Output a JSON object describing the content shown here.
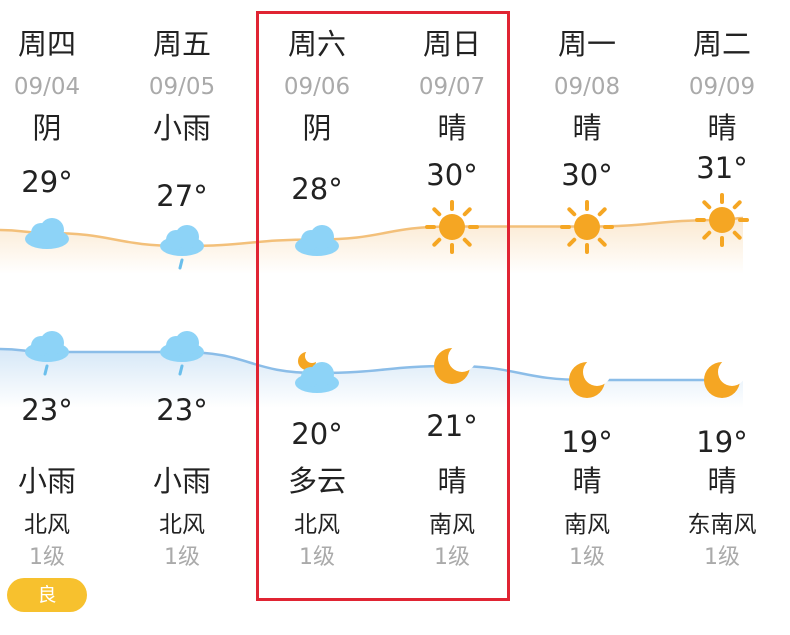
{
  "forecast": {
    "days": [
      {
        "weekday": "周四",
        "date": "09/04",
        "day_condition": "阴",
        "high": "29°",
        "day_icon": "cloud-icon",
        "night_icon": "rain-cloud-icon",
        "low": "23°",
        "night_condition": "小雨",
        "wind_direction": "北风",
        "wind_level": "1级",
        "aqi": "良"
      },
      {
        "weekday": "周五",
        "date": "09/05",
        "day_condition": "小雨",
        "high": "27°",
        "day_icon": "rain-cloud-icon",
        "night_icon": "rain-cloud-icon",
        "low": "23°",
        "night_condition": "小雨",
        "wind_direction": "北风",
        "wind_level": "1级"
      },
      {
        "weekday": "周六",
        "date": "09/06",
        "day_condition": "阴",
        "high": "28°",
        "day_icon": "cloud-icon",
        "night_icon": "moon-cloud-icon",
        "low": "20°",
        "night_condition": "多云",
        "wind_direction": "北风",
        "wind_level": "1级"
      },
      {
        "weekday": "周日",
        "date": "09/07",
        "day_condition": "晴",
        "high": "30°",
        "day_icon": "sun-icon",
        "night_icon": "moon-icon",
        "low": "21°",
        "night_condition": "晴",
        "wind_direction": "南风",
        "wind_level": "1级"
      },
      {
        "weekday": "周一",
        "date": "09/08",
        "day_condition": "晴",
        "high": "30°",
        "day_icon": "sun-icon",
        "night_icon": "moon-icon",
        "low": "19°",
        "night_condition": "晴",
        "wind_direction": "南风",
        "wind_level": "1级"
      },
      {
        "weekday": "周二",
        "date": "09/09",
        "day_condition": "晴",
        "high": "31°",
        "day_icon": "sun-icon",
        "night_icon": "moon-icon",
        "low": "19°",
        "night_condition": "晴",
        "wind_direction": "东南风",
        "wind_level": "1级"
      }
    ],
    "colors": {
      "high_line": "#f3c07a",
      "low_line": "#8bbde8",
      "sun": "#f5a623",
      "cloud": "#8dd3f7",
      "rain": "#6bbfec",
      "moon": "#f5a623",
      "highlight": "#e02433",
      "aqi_good": "#f7c12e"
    }
  }
}
